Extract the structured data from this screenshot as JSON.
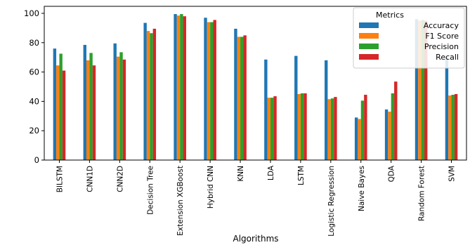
{
  "chart_data": {
    "type": "bar",
    "title": "",
    "xlabel": "Algorithms",
    "ylabel": "",
    "ylim": [
      0,
      100
    ],
    "yticks": [
      0,
      20,
      40,
      60,
      80,
      100
    ],
    "grid": false,
    "legend_title": "Metrics",
    "legend_position": "top-right",
    "categories": [
      "BILSTM",
      "CNN1D",
      "CNN2D",
      "Decision Tree",
      "Extension XGBoost",
      "Hybrid CNN",
      "KNN",
      "LDA",
      "LSTM",
      "Logistic Regression",
      "Naive Bayes",
      "QDA",
      "Random Forest",
      "SVM"
    ],
    "series": [
      {
        "name": "Accuracy",
        "color": "#1f77b4",
        "values": [
          76,
          78.5,
          79.5,
          93.5,
          99.5,
          97,
          89.5,
          68.5,
          71,
          68,
          29,
          34.5,
          96,
          70
        ]
      },
      {
        "name": "F1 Score",
        "color": "#ff7f0e",
        "values": [
          64.5,
          68,
          70.5,
          88,
          98.5,
          94,
          84,
          42.5,
          45,
          41.5,
          28,
          33,
          95,
          44
        ]
      },
      {
        "name": "Precision",
        "color": "#2ca02c",
        "values": [
          72.5,
          73,
          73.5,
          86.5,
          99.5,
          94,
          84,
          42.5,
          45.5,
          42,
          40.5,
          45.5,
          95.5,
          44.5
        ]
      },
      {
        "name": "Recall",
        "color": "#d62728",
        "values": [
          61,
          64.5,
          68.5,
          89.5,
          98,
          95.5,
          85,
          43.5,
          45.5,
          43,
          44.5,
          53.5,
          95,
          45
        ]
      }
    ]
  }
}
